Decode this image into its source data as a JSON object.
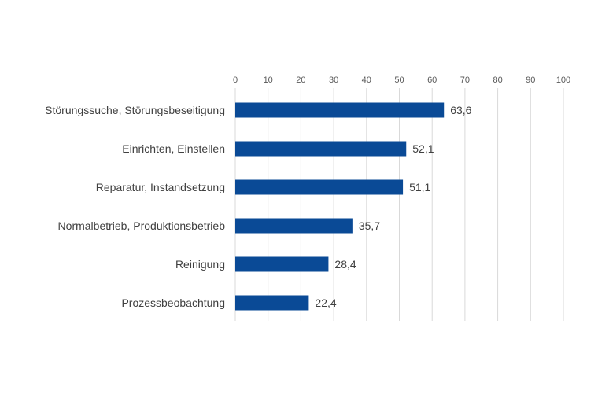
{
  "chart_data": {
    "type": "bar",
    "orientation": "horizontal",
    "categories": [
      "Störungssuche, Störungsbeseitigung",
      "Einrichten, Einstellen",
      "Reparatur, Instandsetzung",
      "Normalbetrieb, Produktionsbetrieb",
      "Reinigung",
      "Prozessbeobachtung"
    ],
    "values": [
      63.6,
      52.1,
      51.1,
      35.7,
      28.4,
      22.4
    ],
    "value_labels": [
      "63,6",
      "52,1",
      "51,1",
      "35,7",
      "28,4",
      "22,4"
    ],
    "x_ticks": [
      "0",
      "10",
      "20",
      "30",
      "40",
      "50",
      "60",
      "70",
      "80",
      "90",
      "100"
    ],
    "xlim": [
      0,
      100
    ],
    "x_axis_position": "top",
    "grid": true,
    "bar_color": "#0a4a96",
    "grid_color": "#d9d9d9"
  }
}
